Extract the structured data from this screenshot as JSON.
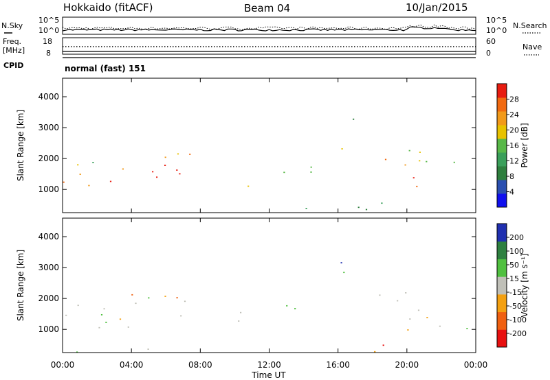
{
  "header": {
    "station": "Hokkaido (fitACF)",
    "beam": "Beam 04",
    "date": "10/Jan/2015"
  },
  "noise_panel": {
    "left_label": "N.Sky",
    "right_label": "N.Search",
    "tick_top": "10^5",
    "tick_bottom": "10^0"
  },
  "freq_panel": {
    "label_line1": "Freq.",
    "label_line2": "[MHz]",
    "left_ticks": [
      "18",
      "8"
    ],
    "right_ticks": [
      "60",
      "0"
    ],
    "right_label": "Nave"
  },
  "cpid_panel": {
    "label": "CPID",
    "text": "normal (fast) 151"
  },
  "colors": {
    "power": [
      "#1010ee",
      "#2a4fb0",
      "#2e7f3e",
      "#3a9f5a",
      "#58b848",
      "#e8c200",
      "#f29a1a",
      "#f26a10",
      "#e81c10"
    ],
    "velocity": [
      "#e81010",
      "#f06010",
      "#f4a010",
      "#c0c0b8",
      "#50c040",
      "#2e8040",
      "#2030b0"
    ]
  },
  "chart_data": [
    {
      "type": "heatmap",
      "name": "power",
      "ylabel": "Slant Range [km]",
      "yticks": [
        "1000",
        "2000",
        "3000",
        "4000"
      ],
      "ylim": [
        250,
        4600
      ],
      "colorbar_label": "Power [dB]",
      "colorbar_ticks": [
        "4",
        "8",
        "12",
        "16",
        "20",
        "24",
        "28"
      ],
      "colorbar_range": [
        0,
        30
      ]
    },
    {
      "type": "heatmap",
      "name": "velocity",
      "ylabel": "Slant Range [km]",
      "yticks": [
        "1000",
        "2000",
        "3000",
        "4000"
      ],
      "ylim": [
        250,
        4600
      ],
      "colorbar_label": "Velocity [m s⁻¹]",
      "colorbar_ticks": [
        "-200",
        "-100",
        "-50",
        "-15",
        "15",
        "50",
        "100",
        "200"
      ],
      "colorbar_range": [
        -250,
        250
      ]
    }
  ],
  "time_axis": {
    "ticks": [
      "00:00",
      "04:00",
      "08:00",
      "12:00",
      "16:00",
      "20:00",
      "00:00"
    ],
    "label": "Time UT",
    "range_hours": [
      0,
      24
    ]
  }
}
